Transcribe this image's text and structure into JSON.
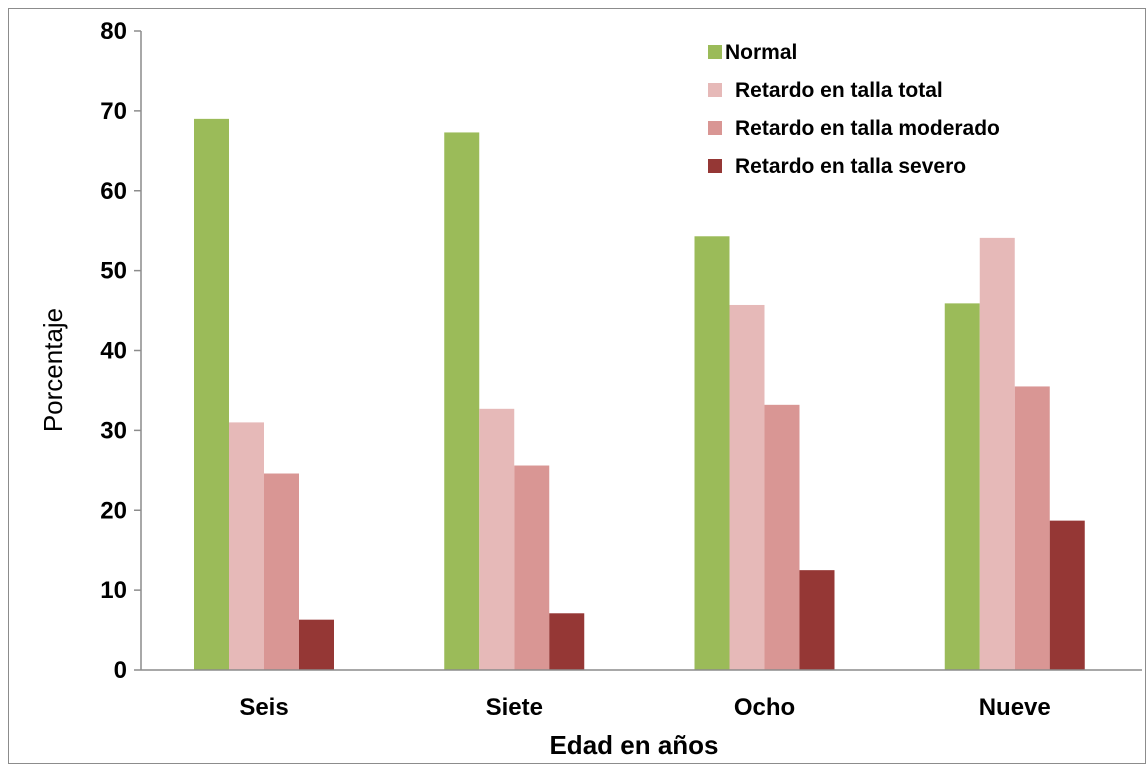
{
  "chart_data": {
    "type": "bar",
    "title": "",
    "xlabel": "Edad en años",
    "ylabel": "Porcentaje",
    "ylim": [
      0,
      80
    ],
    "yticks": [
      0,
      10,
      20,
      30,
      40,
      50,
      60,
      70,
      80
    ],
    "categories": [
      "Seis",
      "Siete",
      "Ocho",
      "Nueve"
    ],
    "series": [
      {
        "name": "Normal",
        "color": "#9bbb59",
        "values": [
          69.0,
          67.3,
          54.3,
          45.9
        ]
      },
      {
        "name": "Retardo en talla total",
        "color": "#e6b9b8",
        "values": [
          31.0,
          32.7,
          45.7,
          54.1
        ]
      },
      {
        "name": "Retardo en talla moderado",
        "color": "#d99694",
        "values": [
          24.6,
          25.6,
          33.2,
          35.5
        ]
      },
      {
        "name": "Retardo en talla severo",
        "color": "#953735",
        "values": [
          6.3,
          7.1,
          12.5,
          18.7
        ]
      }
    ],
    "legend_position": "top-right",
    "grid": false
  }
}
